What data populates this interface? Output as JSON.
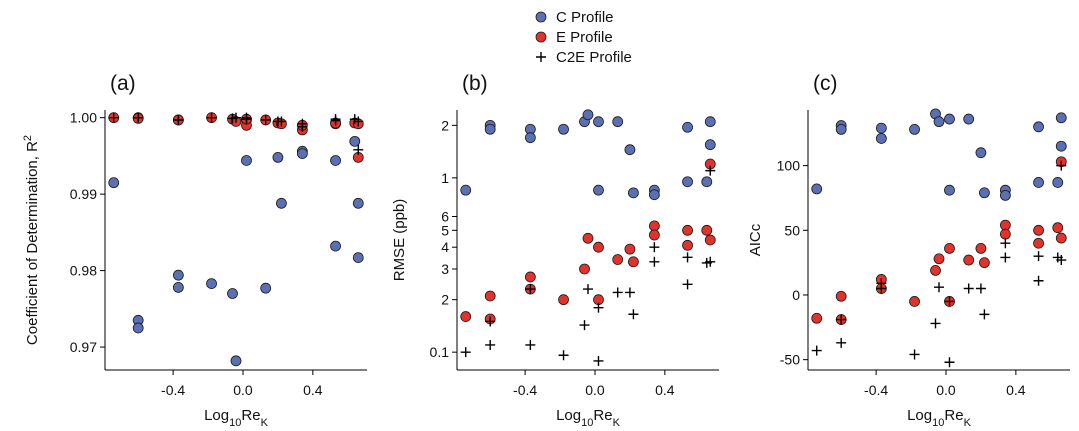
{
  "chart_data": [
    {
      "type": "scatter",
      "title": "(a)",
      "ylabel": [
        "Coefficient of Determination, R",
        "2"
      ],
      "xlabel": [
        "Log",
        "10",
        "Re",
        "K"
      ],
      "x": [
        -0.74,
        -0.6,
        -0.6,
        -0.37,
        -0.37,
        -0.18,
        -0.06,
        -0.04,
        0.02,
        0.02,
        0.13,
        0.2,
        0.22,
        0.34,
        0.34,
        0.53,
        0.53,
        0.64,
        0.66,
        0.66
      ],
      "xlim": [
        -0.79,
        0.71
      ],
      "xticks": [
        -0.4,
        {
          "value": 0,
          "label": "0.0"
        },
        0.4
      ],
      "ylim": [
        0.967,
        1.001
      ],
      "yticks": [
        0.97,
        0.98,
        0.99,
        {
          "value": 1,
          "label": "1.00"
        }
      ],
      "series": [
        {
          "name": "C Profile",
          "color": "#5b6fb3",
          "marker": "o",
          "values": [
            0.9915,
            0.9735,
            0.9725,
            0.9794,
            0.9778,
            0.9783,
            0.977,
            0.9682,
            0.9944,
            0.9997,
            0.9777,
            0.9948,
            0.9888,
            0.9956,
            0.9953,
            0.9832,
            0.9944,
            0.9969,
            0.9888,
            0.9817
          ]
        },
        {
          "name": "E Profile",
          "color": "#e1332b",
          "marker": "o",
          "values": [
            1.0,
            1.0,
            0.9999,
            0.9997,
            0.9997,
            1.0,
            0.9998,
            0.9995,
            0.999,
            0.9998,
            0.9997,
            0.9993,
            0.9992,
            0.9984,
            0.999,
            0.9992,
            0.9993,
            0.9993,
            0.9948,
            0.9992
          ]
        },
        {
          "name": "C2E Profile",
          "color": "#000000",
          "marker": "+",
          "values": [
            1.0,
            1.0,
            1.0,
            0.9997,
            0.9997,
            1.0,
            0.9999,
            1.0,
            1.0,
            0.9998,
            0.9997,
            0.9995,
            0.9995,
            0.9992,
            0.9988,
            0.9996,
            0.9998,
            0.9998,
            0.9958,
            0.9995
          ]
        }
      ]
    },
    {
      "type": "scatter",
      "title": "(b)",
      "ylabel": [
        "RMSE (ppb)"
      ],
      "xlabel": [
        "Log",
        "10",
        "Re",
        "K"
      ],
      "x": [
        -0.74,
        -0.6,
        -0.6,
        -0.37,
        -0.37,
        -0.18,
        -0.06,
        -0.04,
        0.02,
        0.02,
        0.13,
        0.2,
        0.22,
        0.34,
        0.34,
        0.53,
        0.53,
        0.64,
        0.66,
        0.66
      ],
      "xlim": [
        -0.79,
        0.71
      ],
      "xticks": [
        -0.4,
        {
          "value": 0,
          "label": "0.0"
        },
        0.4
      ],
      "ylog": true,
      "ylim": [
        0.079,
        2.45
      ],
      "yticks": [
        0.1,
        {
          "value": 0.2,
          "label": "2"
        },
        {
          "value": 0.3,
          "label": "3"
        },
        {
          "value": 0.4,
          "label": "4"
        },
        {
          "value": 0.5,
          "label": "5"
        },
        {
          "value": 0.6,
          "label": "6"
        },
        1,
        2
      ],
      "series": [
        {
          "name": "C Profile",
          "color": "#5b6fb3",
          "marker": "o",
          "values": [
            0.85,
            2.0,
            1.9,
            1.9,
            1.7,
            1.9,
            2.1,
            2.3,
            2.1,
            0.85,
            2.1,
            1.45,
            0.82,
            0.85,
            0.8,
            1.95,
            0.95,
            0.95,
            2.1,
            1.55
          ]
        },
        {
          "name": "E Profile",
          "color": "#e1332b",
          "marker": "o",
          "values": [
            0.16,
            0.21,
            0.155,
            0.27,
            0.23,
            0.2,
            0.3,
            0.45,
            0.4,
            0.2,
            0.34,
            0.39,
            0.33,
            0.53,
            0.47,
            0.5,
            0.41,
            0.5,
            1.2,
            0.44
          ]
        },
        {
          "name": "C2E Profile",
          "color": "#000000",
          "marker": "+",
          "values": [
            0.1,
            0.15,
            0.11,
            0.23,
            0.11,
            0.096,
            0.143,
            0.23,
            0.18,
            0.089,
            0.22,
            0.22,
            0.165,
            0.4,
            0.33,
            0.35,
            0.245,
            0.325,
            1.1,
            0.33
          ]
        }
      ]
    },
    {
      "type": "scatter",
      "title": "(c)",
      "ylabel": [
        "AICc"
      ],
      "xlabel": [
        "Log",
        "10",
        "Re",
        "K"
      ],
      "x": [
        -0.74,
        -0.6,
        -0.6,
        -0.37,
        -0.37,
        -0.18,
        -0.06,
        -0.04,
        0.02,
        0.02,
        0.13,
        0.2,
        0.22,
        0.34,
        0.34,
        0.53,
        0.53,
        0.64,
        0.66,
        0.66
      ],
      "xlim": [
        -0.79,
        0.71
      ],
      "xticks": [
        -0.4,
        {
          "value": 0,
          "label": "0.0"
        },
        0.4
      ],
      "ylim": [
        -58,
        143
      ],
      "yticks": [
        -50,
        0,
        50,
        100
      ],
      "series": [
        {
          "name": "C Profile",
          "color": "#5b6fb3",
          "marker": "o",
          "values": [
            82,
            131,
            128,
            129,
            121,
            128,
            140,
            134,
            136,
            81,
            136,
            110,
            79,
            81,
            77,
            130,
            87,
            87,
            137,
            115
          ]
        },
        {
          "name": "E Profile",
          "color": "#e1332b",
          "marker": "o",
          "values": [
            -18,
            -1,
            -19,
            12,
            5,
            -5,
            19,
            28,
            36,
            -5,
            27,
            36,
            25,
            54,
            47,
            50,
            40,
            52,
            103,
            44
          ]
        },
        {
          "name": "C2E Profile",
          "color": "#000000",
          "marker": "+",
          "values": [
            -43,
            -19,
            -37,
            9,
            5,
            -46,
            -22,
            6,
            -5,
            -52,
            5,
            5,
            -15,
            40,
            29,
            30,
            11,
            29,
            100,
            27
          ]
        }
      ]
    }
  ]
}
